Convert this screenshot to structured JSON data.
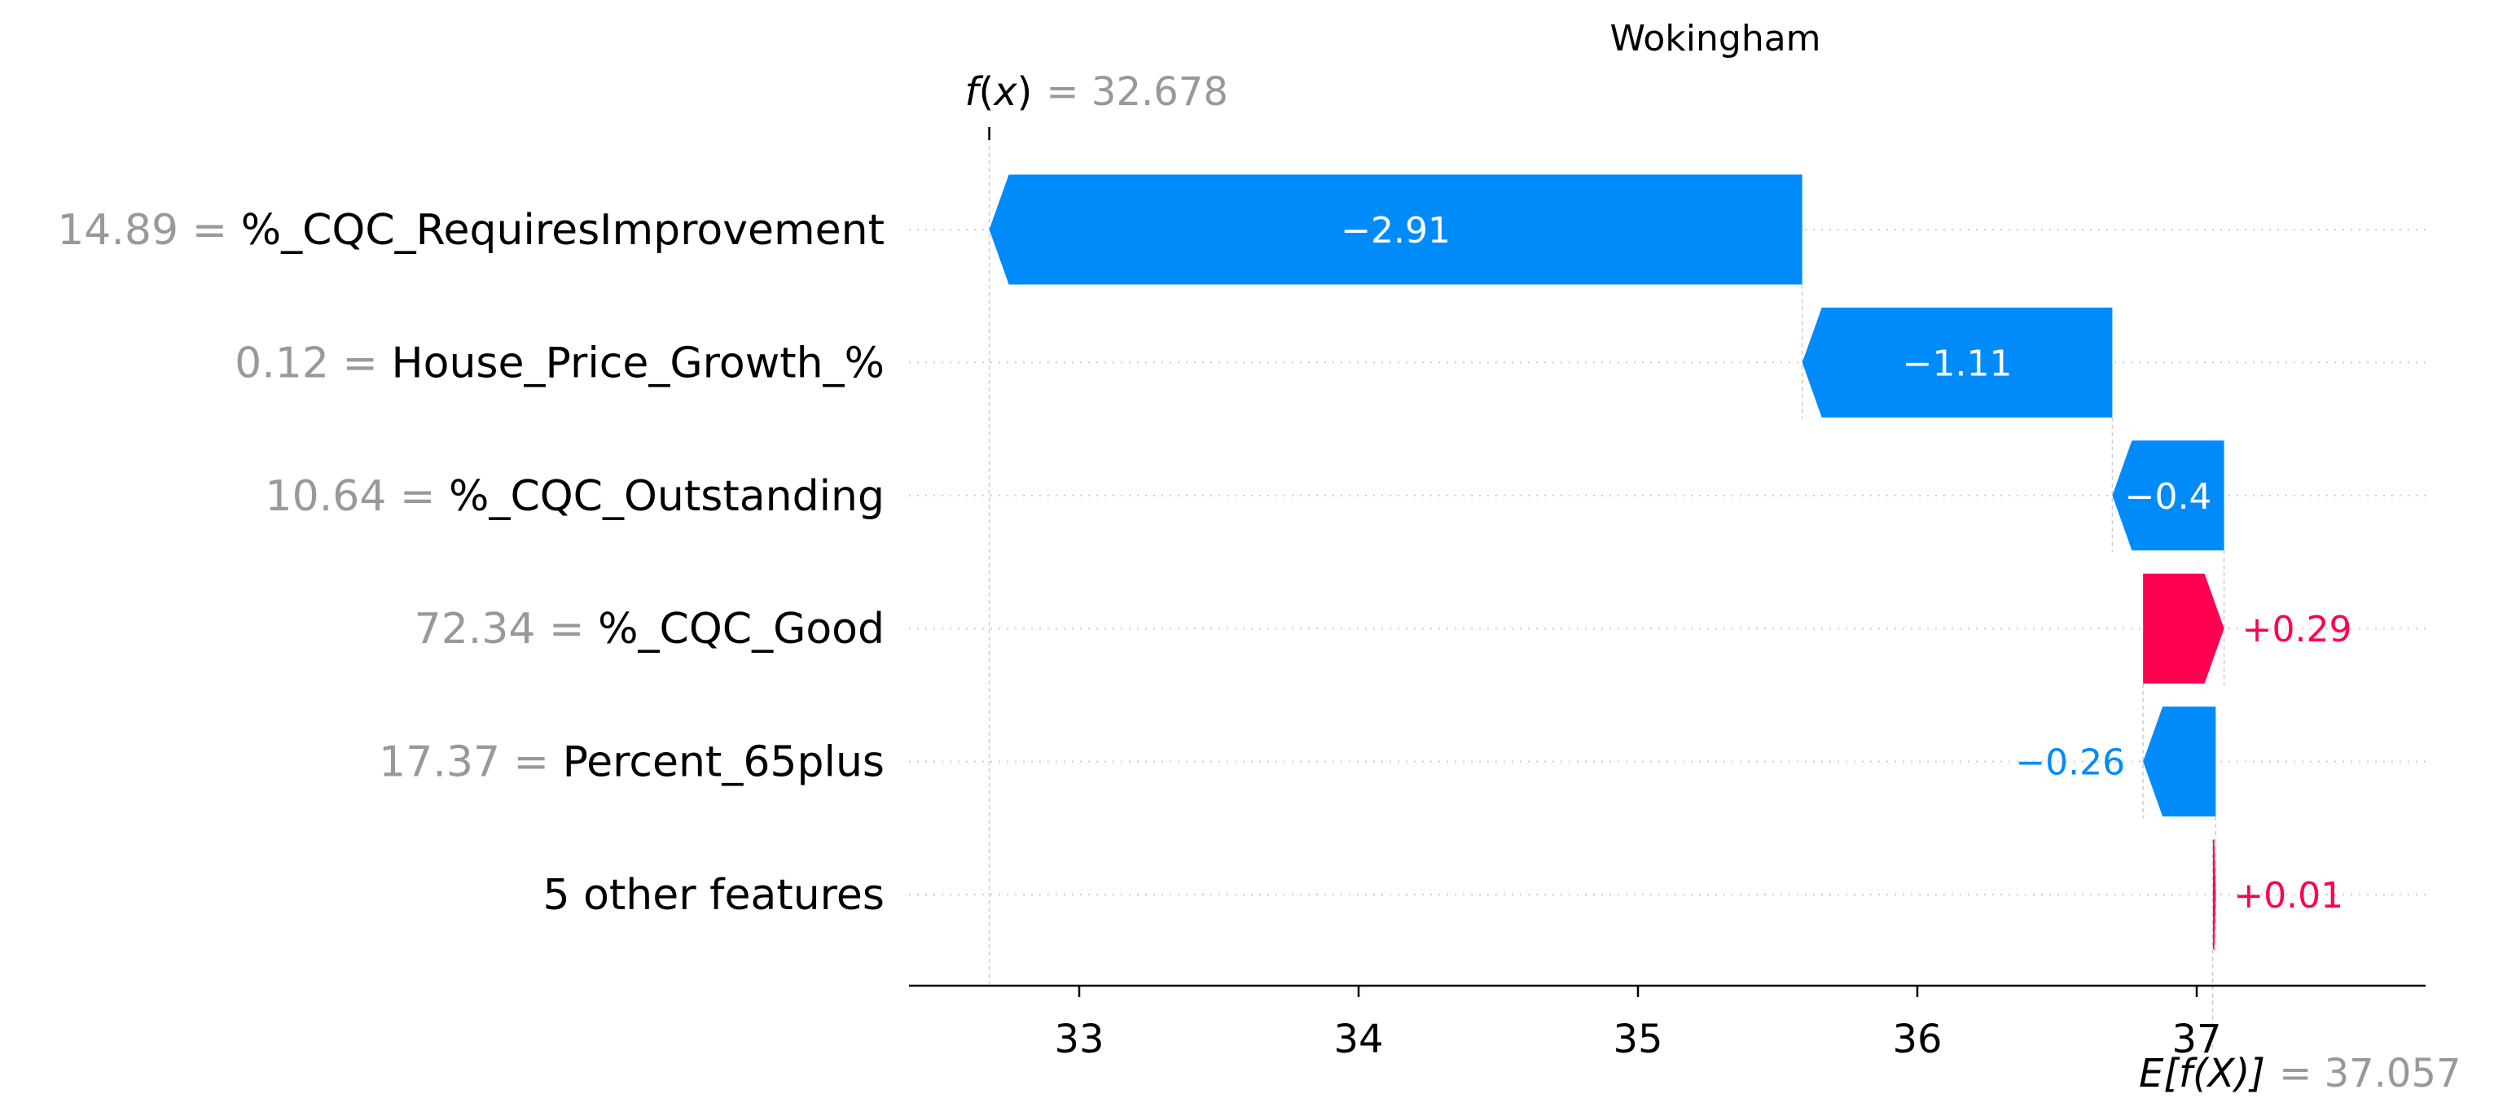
{
  "chart_data": {
    "type": "waterfall",
    "title": "Wokingham",
    "fx": {
      "label_main": "f",
      "label_arg": "x",
      "value_text": "= 32.678",
      "value": 32.678
    },
    "efx": {
      "label_main": "E[f(X)]",
      "value_text": "= 37.057",
      "value": 37.057
    },
    "xlim": [
      32.4,
      37.8
    ],
    "ticks": [
      {
        "value": 33,
        "label": "33"
      },
      {
        "value": 34,
        "label": "34"
      },
      {
        "value": 35,
        "label": "35"
      },
      {
        "value": 36,
        "label": "36"
      },
      {
        "value": 37,
        "label": "37"
      }
    ],
    "features": [
      {
        "value_text": "14.89 =",
        "name": "%_CQC_RequiresImprovement",
        "shap": -2.91,
        "label": "−2.91",
        "start": 35.588,
        "end": 32.678,
        "label_position": "inside"
      },
      {
        "value_text": "0.12 =",
        "name": "House_Price_Growth_%",
        "shap": -1.11,
        "label": "−1.11",
        "start": 36.698,
        "end": 35.588,
        "label_position": "inside"
      },
      {
        "value_text": "10.64 =",
        "name": "%_CQC_Outstanding",
        "shap": -0.4,
        "label": "−0.4",
        "start": 37.098,
        "end": 36.698,
        "label_position": "inside"
      },
      {
        "value_text": "72.34 =",
        "name": "%_CQC_Good",
        "shap": 0.29,
        "label": "+0.29",
        "start": 36.808,
        "end": 37.098,
        "label_position": "outside"
      },
      {
        "value_text": "17.37 =",
        "name": "Percent_65plus",
        "shap": -0.26,
        "label": "−0.26",
        "start": 37.068,
        "end": 36.808,
        "label_position": "outside"
      },
      {
        "value_text": "",
        "name": "5 other features",
        "shap": 0.01,
        "label": "+0.01",
        "start": 37.058,
        "end": 37.068,
        "label_position": "outside"
      }
    ],
    "colors": {
      "positive": "#ff0051",
      "negative": "#008bfb",
      "axis": "#000000",
      "gridline": "#cccccc",
      "muted_text": "#999999"
    }
  }
}
